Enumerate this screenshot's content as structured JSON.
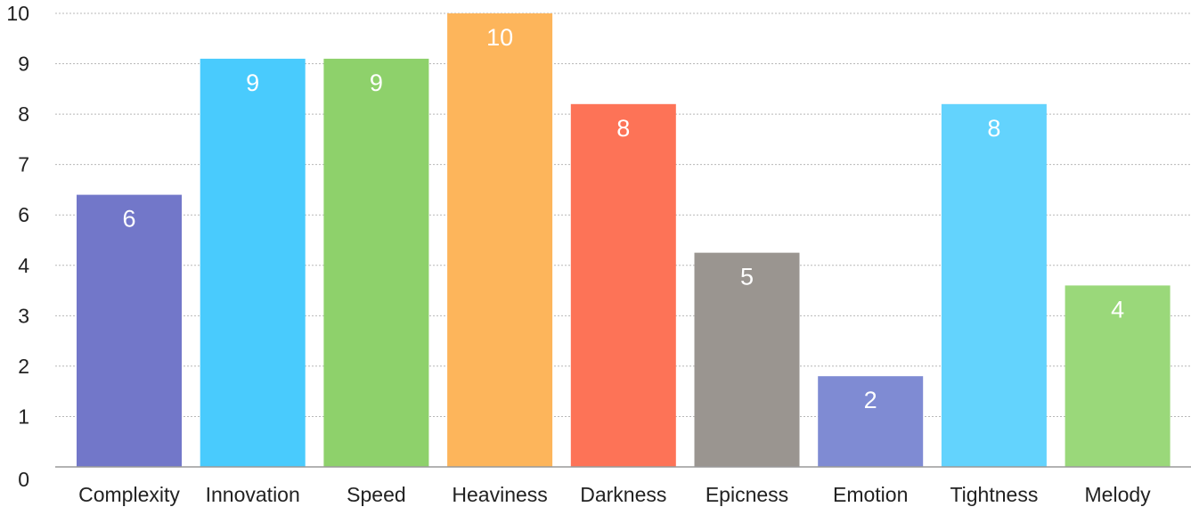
{
  "chart_data": {
    "type": "bar",
    "title": "",
    "xlabel": "",
    "ylabel": "",
    "ylim": [
      0,
      10
    ],
    "y_ticks": [
      "0",
      "1",
      "2",
      "3",
      "4",
      "6",
      "7",
      "8",
      "9",
      "10"
    ],
    "grid": true,
    "legend": "none",
    "categories": [
      "Complexity",
      "Innovation",
      "Speed",
      "Heaviness",
      "Darkness",
      "Epicness",
      "Emotion",
      "Tightness",
      "Melody"
    ],
    "values": [
      6.4,
      9.1,
      9.1,
      10,
      8.2,
      4.5,
      1.8,
      8.2,
      3.6
    ],
    "data_labels": [
      "6",
      "9",
      "9",
      "10",
      "8",
      "5",
      "2",
      "8",
      "4"
    ],
    "colors": [
      "#7277c9",
      "#49cbfd",
      "#8ed16b",
      "#fdb55b",
      "#fd7357",
      "#9a9590",
      "#7f8bd3",
      "#63d3fd",
      "#9ad87a"
    ]
  }
}
